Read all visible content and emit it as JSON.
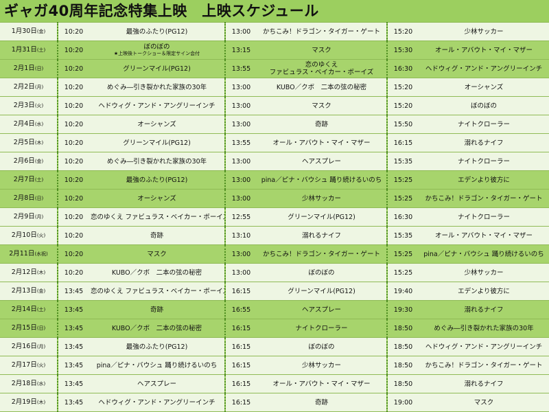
{
  "page": {
    "title": "ギャガ40周年記念特集上映　上映スケジュール",
    "colors": {
      "background": "#9ccf5f",
      "row_light": "#eef6e3",
      "row_dark": "#a7d46c",
      "separator": "#4f8e21"
    }
  },
  "schedule": [
    {
      "date": "1月30日",
      "weekday": "(金)",
      "t1": "10:20",
      "m1": "最強のふたり(PG12)",
      "t2": "13:00",
      "m2": "かちこみ！ドラゴン・タイガー・ゲート",
      "t3": "15:20",
      "m3": "少林サッカー",
      "shade": "light"
    },
    {
      "date": "1月31日",
      "weekday": "(土)",
      "t1": "10:20",
      "m1": "ぼのぼの",
      "m1_note": "★上映後トークショー＆限定サイン会付",
      "t2": "13:15",
      "m2": "マスク",
      "t3": "15:30",
      "m3": "オール・アバウト・マイ・マザー",
      "shade": "dark"
    },
    {
      "date": "2月1日",
      "weekday": "(日)",
      "t1": "10:20",
      "m1": "グリーンマイル(PG12)",
      "t2": "13:55",
      "m2": "恋のゆくえ",
      "m2_line2": "ファビュラス・ベイカー・ボーイズ",
      "t3": "16:30",
      "m3": "ヘドウィグ・アンド・アングリーインチ",
      "shade": "dark"
    },
    {
      "date": "2月2日",
      "weekday": "(月)",
      "t1": "10:20",
      "m1": "めぐみ―引き裂かれた家族の30年",
      "t2": "13:00",
      "m2": "KUBO／クボ　二本の弦の秘密",
      "t3": "15:20",
      "m3": "オーシャンズ",
      "shade": "light"
    },
    {
      "date": "2月3日",
      "weekday": "(火)",
      "t1": "10:20",
      "m1": "ヘドウィグ・アンド・アングリーインチ",
      "t2": "13:00",
      "m2": "マスク",
      "t3": "15:20",
      "m3": "ぼのぼの",
      "shade": "light"
    },
    {
      "date": "2月4日",
      "weekday": "(水)",
      "t1": "10:20",
      "m1": "オーシャンズ",
      "t2": "13:00",
      "m2": "奇跡",
      "t3": "15:50",
      "m3": "ナイトクローラー",
      "shade": "light"
    },
    {
      "date": "2月5日",
      "weekday": "(木)",
      "t1": "10:20",
      "m1": "グリーンマイル(PG12)",
      "t2": "13:55",
      "m2": "オール・アバウト・マイ・マザー",
      "t3": "16:15",
      "m3": "溺れるナイフ",
      "shade": "light"
    },
    {
      "date": "2月6日",
      "weekday": "(金)",
      "t1": "10:20",
      "m1": "めぐみ―引き裂かれた家族の30年",
      "t2": "13:00",
      "m2": "ヘアスプレー",
      "t3": "15:35",
      "m3": "ナイトクローラー",
      "shade": "light"
    },
    {
      "date": "2月7日",
      "weekday": "(土)",
      "t1": "10:20",
      "m1": "最強のふたり(PG12)",
      "t2": "13:00",
      "m2": "pina／ピナ・バウシュ 踊り続けるいのち",
      "t3": "15:25",
      "m3": "エデンより彼方に",
      "shade": "dark"
    },
    {
      "date": "2月8日",
      "weekday": "(日)",
      "t1": "10:20",
      "m1": "オーシャンズ",
      "t2": "13:00",
      "m2": "少林サッカー",
      "t3": "15:25",
      "m3": "かちこみ！ドラゴン・タイガー・ゲート",
      "shade": "dark"
    },
    {
      "date": "2月9日",
      "weekday": "(月)",
      "t1": "10:20",
      "m1": "恋のゆくえ ファビュラス・ベイカー・ボーイズ",
      "t2": "12:55",
      "m2": "グリーンマイル(PG12)",
      "t3": "16:30",
      "m3": "ナイトクローラー",
      "shade": "light"
    },
    {
      "date": "2月10日",
      "weekday": "(火)",
      "t1": "10:20",
      "m1": "奇跡",
      "t2": "13:10",
      "m2": "溺れるナイフ",
      "t3": "15:35",
      "m3": "オール・アバウト・マイ・マザー",
      "shade": "light"
    },
    {
      "date": "2月11日",
      "weekday": "(水祝)",
      "t1": "10:20",
      "m1": "マスク",
      "t2": "13:00",
      "m2": "かちこみ！ドラゴン・タイガー・ゲート",
      "t3": "15:25",
      "m3": "pina／ピナ・バウシュ 踊り続けるいのち",
      "shade": "dark"
    },
    {
      "date": "2月12日",
      "weekday": "(木)",
      "t1": "10:20",
      "m1": "KUBO／クボ　二本の弦の秘密",
      "t2": "13:00",
      "m2": "ぼのぼの",
      "t3": "15:25",
      "m3": "少林サッカー",
      "shade": "light"
    },
    {
      "date": "2月13日",
      "weekday": "(金)",
      "t1": "13:45",
      "m1": "恋のゆくえ ファビュラス・ベイカー・ボーイズ",
      "t2": "16:15",
      "m2": "グリーンマイル(PG12)",
      "t3": "19:40",
      "m3": "エデンより彼方に",
      "shade": "light"
    },
    {
      "date": "2月14日",
      "weekday": "(土)",
      "t1": "13:45",
      "m1": "奇跡",
      "t2": "16:55",
      "m2": "ヘアスプレー",
      "t3": "19:30",
      "m3": "溺れるナイフ",
      "shade": "dark"
    },
    {
      "date": "2月15日",
      "weekday": "(日)",
      "t1": "13:45",
      "m1": "KUBO／クボ　二本の弦の秘密",
      "t2": "16:15",
      "m2": "ナイトクローラー",
      "t3": "18:50",
      "m3": "めぐみ―引き裂かれた家族の30年",
      "shade": "dark"
    },
    {
      "date": "2月16日",
      "weekday": "(月)",
      "t1": "13:45",
      "m1": "最強のふたり(PG12)",
      "t2": "16:15",
      "m2": "ぼのぼの",
      "t3": "18:50",
      "m3": "ヘドウィグ・アンド・アングリーインチ",
      "shade": "light"
    },
    {
      "date": "2月17日",
      "weekday": "(火)",
      "t1": "13:45",
      "m1": "pina／ピナ・バウシュ 踊り続けるいのち",
      "t2": "16:15",
      "m2": "少林サッカー",
      "t3": "18:50",
      "m3": "かちこみ！ドラゴン・タイガー・ゲート",
      "shade": "light"
    },
    {
      "date": "2月18日",
      "weekday": "(水)",
      "t1": "13:45",
      "m1": "ヘアスプレー",
      "t2": "16:15",
      "m2": "オール・アバウト・マイ・マザー",
      "t3": "18:50",
      "m3": "溺れるナイフ",
      "shade": "light"
    },
    {
      "date": "2月19日",
      "weekday": "(木)",
      "t1": "13:45",
      "m1": "ヘドウィグ・アンド・アングリーインチ",
      "t2": "16:15",
      "m2": "奇跡",
      "t3": "19:00",
      "m3": "マスク",
      "shade": "light"
    }
  ]
}
